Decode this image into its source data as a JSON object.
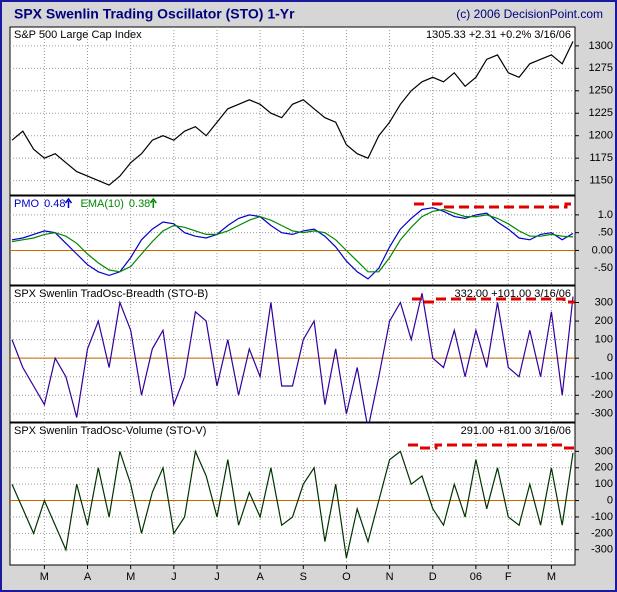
{
  "title": "SPX Swenlin Trading Oscillator (STO) 1-Yr",
  "credit": "(c) 2006 DecisionPoint.com",
  "chart_data": [
    {
      "type": "line",
      "header_left": "S&P 500 Large Cap Index",
      "header_right": "1305.33 +2.31 +0.2% 3/16/06",
      "series": [
        {
          "color": "#000000",
          "values": [
            1195,
            1205,
            1185,
            1175,
            1180,
            1170,
            1160,
            1155,
            1150,
            1145,
            1155,
            1170,
            1180,
            1195,
            1200,
            1195,
            1205,
            1210,
            1200,
            1215,
            1230,
            1235,
            1240,
            1235,
            1225,
            1220,
            1235,
            1240,
            1230,
            1220,
            1215,
            1190,
            1180,
            1175,
            1200,
            1215,
            1235,
            1250,
            1260,
            1265,
            1260,
            1270,
            1255,
            1265,
            1285,
            1290,
            1270,
            1265,
            1280,
            1285,
            1290,
            1280,
            1305
          ]
        }
      ],
      "ylim": [
        1134,
        1321
      ],
      "yticks": [
        1150,
        1175,
        1200,
        1225,
        1250,
        1275,
        1300
      ],
      "grid": true
    },
    {
      "type": "line",
      "series": [
        {
          "name": "PMO",
          "label_value": "0.48",
          "color": "#0000cc",
          "values": [
            0.3,
            0.35,
            0.45,
            0.55,
            0.5,
            0.2,
            -0.1,
            -0.4,
            -0.6,
            -0.7,
            -0.6,
            -0.2,
            0.3,
            0.6,
            0.8,
            0.75,
            0.5,
            0.4,
            0.35,
            0.45,
            0.7,
            0.9,
            1.0,
            0.95,
            0.7,
            0.5,
            0.45,
            0.55,
            0.6,
            0.4,
            0.1,
            -0.3,
            -0.6,
            -0.8,
            -0.5,
            0.1,
            0.6,
            0.9,
            1.15,
            1.2,
            1.1,
            0.95,
            0.9,
            1.0,
            1.05,
            0.8,
            0.6,
            0.35,
            0.3,
            0.45,
            0.5,
            0.3,
            0.48
          ]
        },
        {
          "name": "EMA(10)",
          "label_value": "0.38",
          "color": "#008800",
          "values": [
            0.25,
            0.3,
            0.35,
            0.45,
            0.5,
            0.4,
            0.2,
            -0.1,
            -0.35,
            -0.55,
            -0.6,
            -0.45,
            -0.1,
            0.25,
            0.55,
            0.7,
            0.65,
            0.55,
            0.45,
            0.45,
            0.55,
            0.7,
            0.85,
            0.95,
            0.85,
            0.7,
            0.55,
            0.5,
            0.55,
            0.5,
            0.3,
            0.0,
            -0.3,
            -0.6,
            -0.6,
            -0.2,
            0.3,
            0.65,
            0.95,
            1.1,
            1.15,
            1.05,
            0.95,
            0.95,
            1.0,
            0.9,
            0.75,
            0.55,
            0.4,
            0.4,
            0.45,
            0.4,
            0.38
          ]
        }
      ],
      "ylim": [
        -0.97,
        1.53
      ],
      "yticks": [
        {
          "value": -0.5,
          "label": "-.50"
        },
        {
          "value": 0,
          "label": "0.00"
        },
        {
          "value": 0.5,
          "label": ".50"
        },
        {
          "value": 1,
          "label": "1.0"
        }
      ],
      "grid": true,
      "zero_line_color": "#cc6600"
    },
    {
      "type": "line",
      "header_left": "SPX Swenlin TradOsc-Breadth (STO-B)",
      "header_right": "332.00 +101.00 3/16/06",
      "series": [
        {
          "color": "#330099",
          "values": [
            100,
            -50,
            -150,
            -250,
            0,
            -100,
            -320,
            50,
            200,
            -50,
            300,
            150,
            -200,
            50,
            150,
            -250,
            -100,
            250,
            200,
            -150,
            100,
            -200,
            50,
            -100,
            300,
            -150,
            -150,
            100,
            200,
            -250,
            50,
            -300,
            -50,
            -380,
            -100,
            200,
            300,
            100,
            350,
            0,
            -50,
            150,
            -100,
            150,
            -50,
            300,
            -50,
            -100,
            150,
            -100,
            250,
            -200,
            332
          ]
        }
      ],
      "ylim": [
        -344,
        389
      ],
      "yticks": [
        -300,
        -200,
        -100,
        0,
        100,
        200,
        300
      ],
      "grid": true,
      "zero_line_color": "#cc6600"
    },
    {
      "type": "line",
      "header_left": "SPX Swenlin TradOsc-Volume (STO-V)",
      "header_right": "291.00 +81.00 3/16/06",
      "series": [
        {
          "color": "#003300",
          "values": [
            100,
            -50,
            -200,
            0,
            -150,
            -300,
            100,
            -150,
            200,
            -100,
            300,
            100,
            -200,
            50,
            200,
            -200,
            -100,
            300,
            150,
            -100,
            250,
            -150,
            50,
            -100,
            200,
            -150,
            -100,
            100,
            200,
            -250,
            100,
            -350,
            -50,
            -250,
            0,
            250,
            300,
            100,
            150,
            -50,
            -150,
            100,
            -100,
            250,
            -50,
            200,
            -100,
            -150,
            100,
            -150,
            200,
            -150,
            291
          ]
        }
      ],
      "ylim": [
        -393,
        473
      ],
      "yticks": [
        -300,
        -200,
        -100,
        0,
        100,
        200,
        300
      ],
      "grid": true,
      "zero_line_color": "#cc6600",
      "categories": [
        null,
        null,
        null,
        "M",
        null,
        null,
        null,
        "A",
        null,
        null,
        null,
        "M",
        null,
        null,
        null,
        "J",
        null,
        null,
        null,
        "J",
        null,
        null,
        null,
        "A",
        null,
        null,
        null,
        "S",
        null,
        null,
        null,
        "O",
        null,
        null,
        null,
        "N",
        null,
        null,
        null,
        "D",
        null,
        null,
        null,
        "06",
        null,
        null,
        "F",
        null,
        null,
        null,
        "M",
        null,
        null
      ]
    }
  ]
}
